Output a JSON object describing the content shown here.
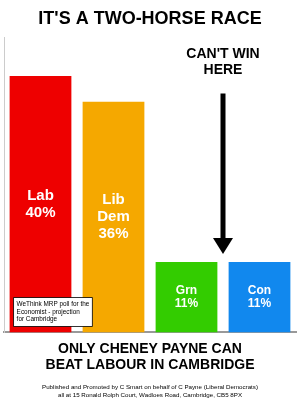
{
  "chart_data": {
    "type": "bar",
    "title": "IT'S A TWO-HORSE RACE",
    "subtitle": "ONLY CHENEY PAYNE CAN\nBEAT LABOUR IN CAMBRIDGE",
    "annotations": [
      "CAN'T WIN\nHERE",
      "WeThink MRP poll for the\nEconomist - projection\nfor Cambridge",
      "Published and Promoted by C Smart on behalf of C Payne (Liberal Democrats)\nall at 15 Ronald Rolph Court, Wadloes Road, Cambridge, CB5 8PX"
    ],
    "categories": [
      null,
      null,
      null,
      null
    ],
    "values": [
      40,
      36,
      11,
      11
    ],
    "value_labels": [
      "Lab\n40%",
      "Lib\nDem\n36%",
      "Grn\n11%",
      "Con\n11%"
    ],
    "data_labels": true,
    "colors": [
      "#ee0000",
      "#f5a800",
      "#33cc00",
      "#1188ee"
    ],
    "ylim": [
      0,
      46
    ],
    "tick_labels": false,
    "grid": false
  }
}
